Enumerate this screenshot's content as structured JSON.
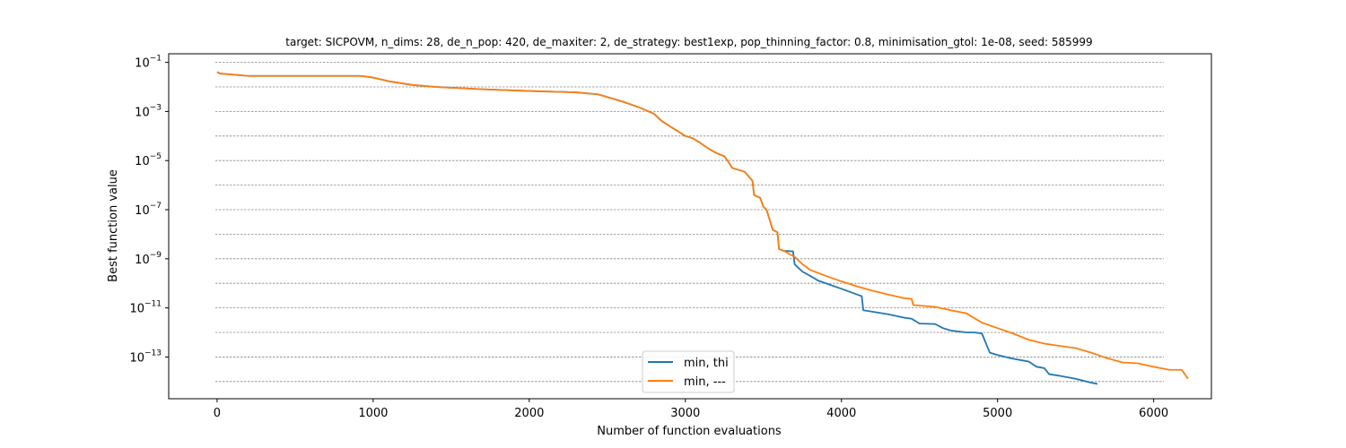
{
  "chart_data": {
    "type": "line",
    "title": "target: SICPOVM, n_dims: 28, de_n_pop: 420, de_maxiter: 2, de_strategy: best1exp, pop_thinning_factor: 0.8, minimisation_gtol: 1e-08, seed: 585999",
    "xlabel": "Number of function evaluations",
    "ylabel": "Best function value",
    "xlim": [
      -310,
      6370
    ],
    "ylim_log10": [
      -14.7,
      -0.65
    ],
    "yscale": "log",
    "xticks": [
      0,
      1000,
      2000,
      3000,
      4000,
      5000,
      6000
    ],
    "yticks": [
      {
        "exp": -1,
        "base": "10",
        "sup": "−1"
      },
      {
        "exp": -3,
        "base": "10",
        "sup": "−3"
      },
      {
        "exp": -5,
        "base": "10",
        "sup": "−5"
      },
      {
        "exp": -7,
        "base": "10",
        "sup": "−7"
      },
      {
        "exp": -9,
        "base": "10",
        "sup": "−9"
      },
      {
        "exp": -11,
        "base": "10",
        "sup": "−11"
      },
      {
        "exp": -13,
        "base": "10",
        "sup": "−13"
      }
    ],
    "grid_log10": [
      -1,
      -2,
      -3,
      -4,
      -5,
      -6,
      -7,
      -8,
      -9,
      -10,
      -11,
      -12,
      -13,
      -14
    ],
    "grid": "horizontal dashed",
    "legend_position": "bottom-center",
    "series": [
      {
        "name": "min, thi",
        "color": "#1f77b4",
        "x": [
          0,
          20,
          200,
          920,
          1000,
          1100,
          1250,
          1400,
          1700,
          2000,
          2300,
          2440,
          2600,
          2700,
          2800,
          2850,
          2900,
          2950,
          3000,
          3050,
          3100,
          3150,
          3200,
          3250,
          3280,
          3300,
          3380,
          3430,
          3440,
          3480,
          3500,
          3520,
          3560,
          3590,
          3600,
          3630,
          3690,
          3700,
          3720,
          3750,
          3800,
          3850,
          4000,
          4100,
          4130,
          4140,
          4300,
          4400,
          4450,
          4500,
          4600,
          4650,
          4700,
          4800,
          4850,
          4900,
          4950,
          5000,
          5050,
          5100,
          5200,
          5250,
          5300,
          5330,
          5400,
          5500,
          5600,
          5640
        ],
        "y": [
          0.04,
          0.035,
          0.028,
          0.028,
          0.024,
          0.017,
          0.012,
          0.01,
          0.008,
          0.0068,
          0.006,
          0.005,
          0.0025,
          0.0015,
          0.0008,
          0.0004,
          0.00025,
          0.00016,
          0.0001,
          8e-05,
          5e-05,
          3e-05,
          2e-05,
          1.5e-05,
          8e-06,
          5e-06,
          3.5e-06,
          1.5e-06,
          4e-07,
          3e-07,
          1.3e-07,
          1e-07,
          1.5e-08,
          1.2e-08,
          2.5e-09,
          2.1e-09,
          2e-09,
          6e-10,
          4.5e-10,
          3e-10,
          2e-10,
          1.3e-10,
          6e-11,
          3.5e-11,
          3e-11,
          8e-12,
          5.5e-12,
          4e-12,
          3.6e-12,
          2.3e-12,
          2.2e-12,
          1.5e-12,
          1.2e-12,
          1e-12,
          1e-12,
          9e-13,
          1.5e-13,
          1.2e-13,
          1e-13,
          8.5e-14,
          6.5e-14,
          4e-14,
          3.5e-14,
          2e-14,
          1.7e-14,
          1.3e-14,
          9e-15,
          8e-15
        ]
      },
      {
        "name": "min, ---",
        "color": "#ff7f0e",
        "x": [
          0,
          20,
          200,
          920,
          1000,
          1100,
          1250,
          1400,
          1700,
          2000,
          2300,
          2440,
          2600,
          2700,
          2800,
          2850,
          2900,
          2950,
          3000,
          3050,
          3100,
          3150,
          3200,
          3250,
          3280,
          3300,
          3380,
          3430,
          3440,
          3480,
          3500,
          3520,
          3560,
          3590,
          3600,
          3630,
          3700,
          3750,
          3800,
          3900,
          4000,
          4100,
          4200,
          4300,
          4400,
          4450,
          4460,
          4600,
          4700,
          4800,
          4900,
          5000,
          5100,
          5200,
          5300,
          5400,
          5500,
          5600,
          5700,
          5800,
          5900,
          6000,
          6100,
          6180,
          6220
        ],
        "y": [
          0.04,
          0.035,
          0.028,
          0.028,
          0.024,
          0.017,
          0.012,
          0.01,
          0.008,
          0.0068,
          0.006,
          0.005,
          0.0025,
          0.0015,
          0.0008,
          0.0004,
          0.00025,
          0.00016,
          0.0001,
          8e-05,
          5e-05,
          3e-05,
          2e-05,
          1.5e-05,
          8e-06,
          5e-06,
          3.5e-06,
          1.5e-06,
          4e-07,
          3e-07,
          1.3e-07,
          1e-07,
          1.5e-08,
          1.2e-08,
          2.5e-09,
          2.1e-09,
          1.2e-09,
          6e-10,
          3.5e-10,
          2e-10,
          1.2e-10,
          7.5e-11,
          5e-11,
          3.5e-11,
          2.5e-11,
          2.3e-11,
          1.3e-11,
          1.1e-11,
          8e-12,
          6e-12,
          2.5e-12,
          1.5e-12,
          9e-13,
          5e-13,
          3.5e-13,
          2.8e-13,
          2.3e-13,
          1.5e-13,
          9e-14,
          6e-14,
          5.5e-14,
          4e-14,
          3e-14,
          3e-14,
          1.3e-14
        ]
      }
    ]
  }
}
